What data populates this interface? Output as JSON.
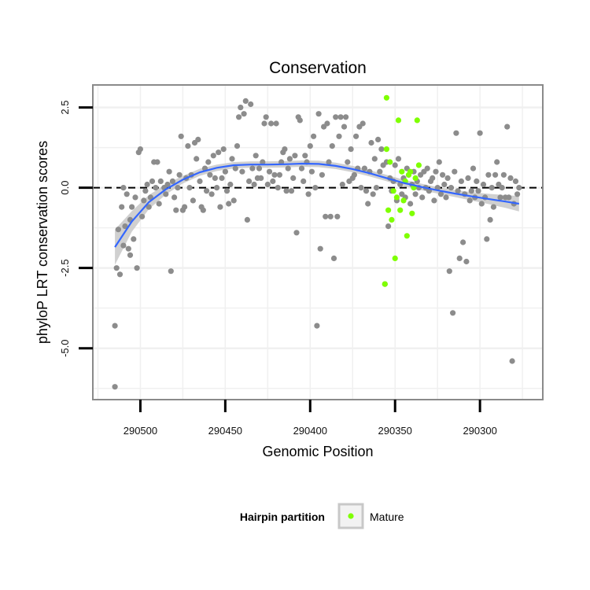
{
  "chart_data": {
    "type": "scatter",
    "title": "Conservation",
    "xlabel": "Genomic Position",
    "ylabel": "phyloP LRT conservation scores",
    "x_reversed": true,
    "xlim": [
      290528,
      290263
    ],
    "ylim": [
      -6.6,
      3.2
    ],
    "x_ticks": [
      290500,
      290450,
      290400,
      290350,
      290300
    ],
    "x_tick_labels": [
      "290500",
      "290450",
      "290400",
      "290350",
      "290300"
    ],
    "y_ticks": [
      2.5,
      0.0,
      -2.5,
      -5.0
    ],
    "y_tick_labels": [
      "2.5",
      "0.0",
      "-2.5",
      "-5.0"
    ],
    "hline": 0,
    "grid": true,
    "legend": {
      "title": "Hairpin partition",
      "position": "bottom",
      "entries": [
        {
          "label": "Mature",
          "color": "#7fff00"
        }
      ]
    },
    "colors": {
      "point": "#8c8c8c",
      "mature": "#7fff00",
      "smooth": "#3366ff",
      "band": "#c8c8c8"
    },
    "series": [
      {
        "key": "all",
        "points": [
          [
            290515,
            -6.2
          ],
          [
            290515,
            -4.3
          ],
          [
            290514,
            -2.5
          ],
          [
            290513,
            -1.3
          ],
          [
            290512,
            -2.7
          ],
          [
            290511,
            -0.6
          ],
          [
            290510,
            -1.8
          ],
          [
            290510,
            0.0
          ],
          [
            290509,
            -1.2
          ],
          [
            290508,
            -0.2
          ],
          [
            290507,
            -1.9
          ],
          [
            290506,
            -2.1
          ],
          [
            290506,
            -1.0
          ],
          [
            290505,
            -0.6
          ],
          [
            290504,
            -1.6
          ],
          [
            290503,
            -0.3
          ],
          [
            290502,
            -2.5
          ],
          [
            290501,
            1.1
          ],
          [
            290500,
            1.2
          ],
          [
            290499,
            -0.9
          ],
          [
            290498,
            -0.4
          ],
          [
            290497,
            -0.1
          ],
          [
            290496,
            0.1
          ],
          [
            290495,
            -0.6
          ],
          [
            290494,
            -0.3
          ],
          [
            290493,
            0.2
          ],
          [
            290492,
            0.8
          ],
          [
            290491,
            0.0
          ],
          [
            290490,
            0.8
          ],
          [
            290489,
            -0.5
          ],
          [
            290488,
            0.2
          ],
          [
            290486,
            0.0
          ],
          [
            290485,
            -0.2
          ],
          [
            290484,
            0.1
          ],
          [
            290483,
            0.5
          ],
          [
            290482,
            -2.6
          ],
          [
            290481,
            0.2
          ],
          [
            290480,
            -0.3
          ],
          [
            290479,
            -0.7
          ],
          [
            290478,
            0.0
          ],
          [
            290477,
            0.4
          ],
          [
            290476,
            1.6
          ],
          [
            290475,
            -0.7
          ],
          [
            290474,
            -0.6
          ],
          [
            290473,
            0.3
          ],
          [
            290472,
            1.3
          ],
          [
            290471,
            0.0
          ],
          [
            290470,
            0.4
          ],
          [
            290469,
            -0.4
          ],
          [
            290468,
            1.4
          ],
          [
            290467,
            0.9
          ],
          [
            290466,
            1.5
          ],
          [
            290465,
            0.2
          ],
          [
            290464,
            -0.6
          ],
          [
            290463,
            -0.7
          ],
          [
            290462,
            0.6
          ],
          [
            290461,
            -0.1
          ],
          [
            290460,
            0.8
          ],
          [
            290459,
            0.4
          ],
          [
            290458,
            -0.2
          ],
          [
            290457,
            1.0
          ],
          [
            290456,
            0.3
          ],
          [
            290455,
            0.0
          ],
          [
            290454,
            1.1
          ],
          [
            290453,
            -0.6
          ],
          [
            290452,
            0.3
          ],
          [
            290451,
            1.2
          ],
          [
            290450,
            0.5
          ],
          [
            290449,
            -0.1
          ],
          [
            290448,
            -0.5
          ],
          [
            290447,
            0.1
          ],
          [
            290446,
            0.9
          ],
          [
            290445,
            -0.4
          ],
          [
            290444,
            0.6
          ],
          [
            290443,
            1.3
          ],
          [
            290442,
            2.2
          ],
          [
            290441,
            2.5
          ],
          [
            290440,
            0.5
          ],
          [
            290439,
            2.3
          ],
          [
            290438,
            2.7
          ],
          [
            290437,
            -1.0
          ],
          [
            290436,
            0.2
          ],
          [
            290435,
            2.6
          ],
          [
            290434,
            0.6
          ],
          [
            290433,
            0.1
          ],
          [
            290432,
            1.0
          ],
          [
            290431,
            0.3
          ],
          [
            290430,
            0.6
          ],
          [
            290429,
            0.3
          ],
          [
            290428,
            0.8
          ],
          [
            290427,
            2.0
          ],
          [
            290426,
            2.2
          ],
          [
            290425,
            0.1
          ],
          [
            290424,
            0.5
          ],
          [
            290423,
            2.0
          ],
          [
            290422,
            0.2
          ],
          [
            290421,
            0.4
          ],
          [
            290420,
            2.0
          ],
          [
            290419,
            0.0
          ],
          [
            290418,
            0.4
          ],
          [
            290417,
            0.8
          ],
          [
            290416,
            1.1
          ],
          [
            290415,
            1.2
          ],
          [
            290414,
            -0.1
          ],
          [
            290413,
            0.6
          ],
          [
            290412,
            0.9
          ],
          [
            290411,
            -0.1
          ],
          [
            290410,
            0.3
          ],
          [
            290409,
            1.0
          ],
          [
            290408,
            -1.4
          ],
          [
            290407,
            2.2
          ],
          [
            290406,
            2.1
          ],
          [
            290405,
            0.6
          ],
          [
            290404,
            0.2
          ],
          [
            290403,
            1.0
          ],
          [
            290402,
            0.8
          ],
          [
            290401,
            -0.2
          ],
          [
            290400,
            1.3
          ],
          [
            290399,
            0.5
          ],
          [
            290398,
            1.6
          ],
          [
            290397,
            0.0
          ],
          [
            290396,
            -4.3
          ],
          [
            290395,
            2.3
          ],
          [
            290394,
            -1.9
          ],
          [
            290393,
            0.4
          ],
          [
            290392,
            1.9
          ],
          [
            290391,
            -0.9
          ],
          [
            290390,
            2.0
          ],
          [
            290389,
            0.8
          ],
          [
            290388,
            -0.9
          ],
          [
            290387,
            1.3
          ],
          [
            290386,
            -2.2
          ],
          [
            290385,
            2.2
          ],
          [
            290384,
            -0.9
          ],
          [
            290383,
            1.6
          ],
          [
            290382,
            2.2
          ],
          [
            290381,
            0.1
          ],
          [
            290380,
            1.9
          ],
          [
            290379,
            2.2
          ],
          [
            290378,
            0.8
          ],
          [
            290377,
            0.2
          ],
          [
            290376,
            1.2
          ],
          [
            290375,
            0.3
          ],
          [
            290374,
            0.4
          ],
          [
            290373,
            1.6
          ],
          [
            290372,
            0.6
          ],
          [
            290371,
            1.9
          ],
          [
            290370,
            0.0
          ],
          [
            290369,
            2.0
          ],
          [
            290368,
            0.6
          ],
          [
            290367,
            -0.1
          ],
          [
            290366,
            -0.5
          ],
          [
            290365,
            0.5
          ],
          [
            290364,
            1.4
          ],
          [
            290363,
            -0.2
          ],
          [
            290362,
            0.9
          ],
          [
            290361,
            0.0
          ],
          [
            290360,
            1.5
          ],
          [
            290359,
            0.5
          ],
          [
            290358,
            1.2
          ],
          [
            290357,
            0.7
          ],
          [
            290356,
            -3.0
          ],
          [
            290355,
            0.8
          ],
          [
            290354,
            -1.2
          ],
          [
            290353,
            0.3
          ],
          [
            290352,
            -0.1
          ],
          [
            290351,
            0.2
          ],
          [
            290350,
            0.7
          ],
          [
            290349,
            -0.4
          ],
          [
            290348,
            0.9
          ],
          [
            290347,
            0.1
          ],
          [
            290346,
            -0.2
          ],
          [
            290345,
            0.3
          ],
          [
            290344,
            -0.3
          ],
          [
            290343,
            0.6
          ],
          [
            290342,
            0.4
          ],
          [
            290341,
            -0.5
          ],
          [
            290340,
            0.1
          ],
          [
            290339,
            0.5
          ],
          [
            290338,
            -0.2
          ],
          [
            290337,
            0.2
          ],
          [
            290336,
            0.0
          ],
          [
            290335,
            0.4
          ],
          [
            290334,
            -0.3
          ],
          [
            290333,
            0.5
          ],
          [
            290332,
            0.0
          ],
          [
            290331,
            0.6
          ],
          [
            290330,
            -0.1
          ],
          [
            290329,
            0.2
          ],
          [
            290328,
            0.3
          ],
          [
            290327,
            -0.4
          ],
          [
            290326,
            0.5
          ],
          [
            290325,
            0.0
          ],
          [
            290324,
            0.8
          ],
          [
            290323,
            -0.2
          ],
          [
            290322,
            0.4
          ],
          [
            290321,
            0.1
          ],
          [
            290320,
            -0.3
          ],
          [
            290319,
            0.3
          ],
          [
            290318,
            -2.6
          ],
          [
            290317,
            0.0
          ],
          [
            290316,
            -3.9
          ],
          [
            290315,
            0.5
          ],
          [
            290314,
            1.7
          ],
          [
            290313,
            -0.1
          ],
          [
            290312,
            -2.2
          ],
          [
            290311,
            0.2
          ],
          [
            290310,
            -1.7
          ],
          [
            290309,
            -0.2
          ],
          [
            290308,
            -2.3
          ],
          [
            290307,
            0.3
          ],
          [
            290306,
            -0.4
          ],
          [
            290305,
            -0.1
          ],
          [
            290304,
            0.6
          ],
          [
            290303,
            -0.3
          ],
          [
            290302,
            0.2
          ],
          [
            290301,
            -0.1
          ],
          [
            290300,
            1.7
          ],
          [
            290299,
            -0.5
          ],
          [
            290298,
            0.1
          ],
          [
            290297,
            -0.3
          ],
          [
            290296,
            -1.6
          ],
          [
            290295,
            0.4
          ],
          [
            290294,
            -1.0
          ],
          [
            290293,
            0.0
          ],
          [
            290292,
            -0.6
          ],
          [
            290291,
            0.4
          ],
          [
            290290,
            0.8
          ],
          [
            290289,
            0.1
          ],
          [
            290288,
            -0.3
          ],
          [
            290287,
            0.0
          ],
          [
            290286,
            0.4
          ],
          [
            290285,
            -0.3
          ],
          [
            290284,
            1.9
          ],
          [
            290283,
            -0.3
          ],
          [
            290282,
            0.3
          ],
          [
            290281,
            -5.4
          ],
          [
            290280,
            -0.5
          ],
          [
            290279,
            0.2
          ],
          [
            290278,
            -0.2
          ],
          [
            290277,
            0.0
          ]
        ]
      },
      {
        "key": "mature",
        "name": "Mature",
        "points": [
          [
            290356,
            -3.0
          ],
          [
            290355,
            2.8
          ],
          [
            290355,
            1.2
          ],
          [
            290354,
            -0.7
          ],
          [
            290353,
            0.8
          ],
          [
            290352,
            -1.0
          ],
          [
            290351,
            -0.1
          ],
          [
            290350,
            -2.2
          ],
          [
            290349,
            -0.3
          ],
          [
            290348,
            2.1
          ],
          [
            290347,
            -0.7
          ],
          [
            290346,
            0.5
          ],
          [
            290345,
            -0.4
          ],
          [
            290344,
            0.2
          ],
          [
            290343,
            -1.5
          ],
          [
            290342,
            0.4
          ],
          [
            290341,
            0.5
          ],
          [
            290340,
            -0.8
          ],
          [
            290339,
            0.0
          ],
          [
            290338,
            0.3
          ],
          [
            290337,
            2.1
          ],
          [
            290336,
            0.7
          ]
        ]
      }
    ],
    "smooth_fit": {
      "x": [
        290515,
        290505,
        290495,
        290485,
        290475,
        290465,
        290455,
        290445,
        290435,
        290425,
        290415,
        290405,
        290395,
        290385,
        290375,
        290365,
        290355,
        290345,
        290335,
        290325,
        290315,
        290305,
        290295,
        290285,
        290277
      ],
      "y": [
        -1.85,
        -1.05,
        -0.45,
        -0.05,
        0.25,
        0.48,
        0.62,
        0.7,
        0.72,
        0.72,
        0.73,
        0.75,
        0.74,
        0.68,
        0.58,
        0.45,
        0.3,
        0.15,
        0.03,
        -0.08,
        -0.18,
        -0.27,
        -0.35,
        -0.43,
        -0.5
      ],
      "band_halfwidth": [
        0.55,
        0.32,
        0.22,
        0.16,
        0.12,
        0.11,
        0.1,
        0.1,
        0.1,
        0.1,
        0.1,
        0.1,
        0.1,
        0.1,
        0.1,
        0.1,
        0.1,
        0.1,
        0.1,
        0.1,
        0.11,
        0.13,
        0.16,
        0.2,
        0.24
      ]
    }
  }
}
